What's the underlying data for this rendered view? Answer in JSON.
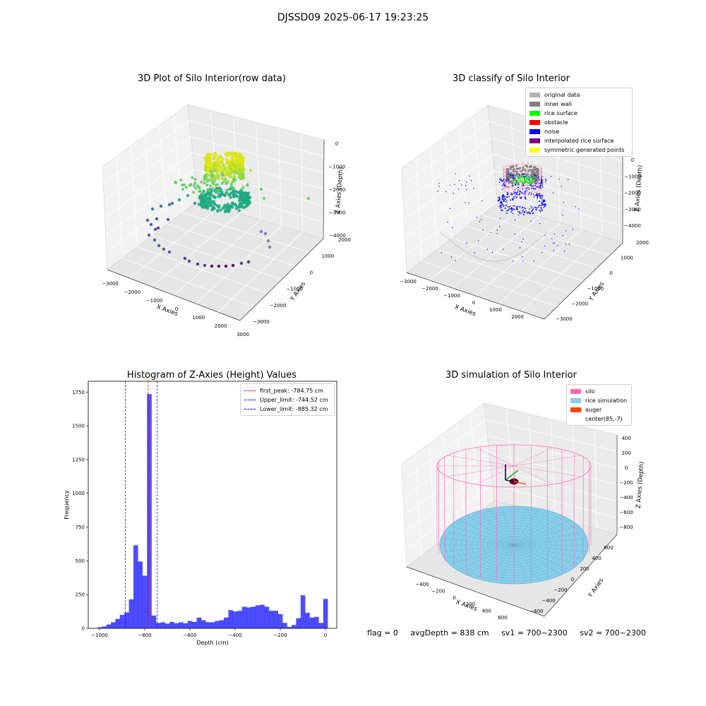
{
  "figure_title": "DJSSD09 2025-06-17 19:23:25",
  "footer": {
    "flag": "flag = 0",
    "avg_depth": "avgDepth = 838 cm",
    "sv1": "sv1 = 700~2300",
    "sv2": "sv2 = 700~2300"
  },
  "chart_data": [
    {
      "type": "scatter3d",
      "title": "3D Plot of Silo Interior(row data)",
      "xlabel": "X Axies",
      "ylabel": "Y Axies",
      "zlabel": "Z Axies (Depth)",
      "xticks": [
        "−3000",
        "−2000",
        "−1000",
        "0",
        "1000",
        "2000",
        "3000"
      ],
      "yticks": [
        "−3000",
        "−2000",
        "−1000",
        "0",
        "1000",
        "2000"
      ],
      "zticks": [
        "0",
        "−1000",
        "−2000",
        "−3000",
        "−4000"
      ],
      "colormap": "viridis (colored by depth)",
      "colors": {
        "top": "#dde318",
        "mid": "#22a884",
        "low": "#2c728e",
        "bottom": "#440154"
      }
    },
    {
      "type": "scatter3d",
      "title": "3D classify of Silo Interior",
      "xlabel": "X Axies",
      "ylabel": "Y Axies",
      "zlabel": "Z Axies (Depth)",
      "xticks": [
        "−3000",
        "−2000",
        "−1000",
        "0",
        "1000",
        "2000"
      ],
      "yticks": [
        "−3000",
        "−2000",
        "−1000",
        "0",
        "1000",
        "2000"
      ],
      "zticks": [
        "0",
        "−1000",
        "−2000",
        "−3000",
        "−4000"
      ],
      "legend_position": "top-right",
      "legend": [
        {
          "label": "original data",
          "color": "#b3b3b3"
        },
        {
          "label": "inner wall",
          "color": "#808080"
        },
        {
          "label": "rice surface",
          "color": "#00ff00"
        },
        {
          "label": "obstacle",
          "color": "#ff0000"
        },
        {
          "label": "noise",
          "color": "#0000ff"
        },
        {
          "label": "interpolated rice surface",
          "color": "#800080"
        },
        {
          "label": "symmetric generated points",
          "color": "#ffff00"
        }
      ]
    },
    {
      "type": "bar",
      "title": "Histogram of Z-Axies (Height) Values",
      "xlabel": "Depth (cm)",
      "ylabel": "Frequency",
      "xlim": [
        -1050,
        50
      ],
      "ylim": [
        0,
        1830
      ],
      "xticks": [
        -1000,
        -800,
        -600,
        -400,
        -200,
        0
      ],
      "yticks": [
        0,
        250,
        500,
        750,
        1000,
        1250,
        1500,
        1750
      ],
      "bar_color": "#0000ff",
      "bin_width": 20,
      "bin_start": -1010,
      "values": [
        8,
        14,
        28,
        45,
        70,
        100,
        118,
        215,
        615,
        495,
        390,
        1735,
        95,
        40,
        45,
        35,
        48,
        38,
        45,
        38,
        55,
        48,
        80,
        60,
        45,
        45,
        55,
        60,
        80,
        135,
        125,
        130,
        160,
        155,
        160,
        170,
        175,
        160,
        130,
        130,
        105,
        40,
        10,
        25,
        75,
        245,
        115,
        80,
        85,
        40,
        218
      ],
      "lines": [
        {
          "label": "first_peak: -784.75 cm",
          "x": -784.75,
          "color": "#ff0000"
        },
        {
          "label": "Upper_limit: -744.52 cm",
          "x": -744.52,
          "color": "#0000ff"
        },
        {
          "label": "Lower_limit: -885.32 cm",
          "x": -885.32,
          "color": "#0000ff"
        }
      ],
      "legend_position": "top-right"
    },
    {
      "type": "surface3d",
      "title": "3D simulation of Silo Interior",
      "xlabel": "X Axies",
      "ylabel": "Y Axies",
      "zlabel": "Z Axies (Depth)",
      "xticks": [
        "−400",
        "−200",
        "0",
        "200",
        "400",
        "600"
      ],
      "yticks": [
        "−600",
        "−400",
        "−200",
        "0",
        "200",
        "400",
        "600"
      ],
      "zticks": [
        "400",
        "200",
        "0",
        "−200",
        "−400",
        "−600",
        "−800"
      ],
      "legend_position": "top-right",
      "legend": [
        {
          "label": "silo",
          "color": "#ff69b4"
        },
        {
          "label": "rice simulation",
          "color": "#87ceeb"
        },
        {
          "label": "auger",
          "color": "#ff4500"
        },
        {
          "label": "center(85,-7)",
          "color": ""
        }
      ]
    }
  ]
}
